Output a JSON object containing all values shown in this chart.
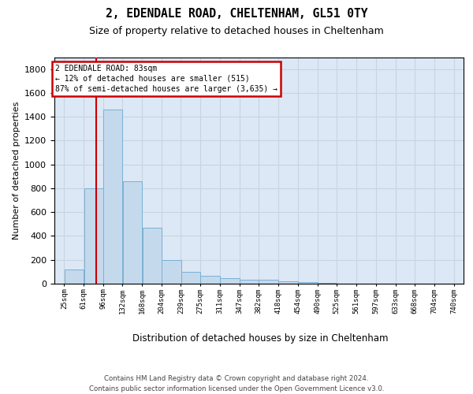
{
  "title": "2, EDENDALE ROAD, CHELTENHAM, GL51 0TY",
  "subtitle": "Size of property relative to detached houses in Cheltenham",
  "xlabel": "Distribution of detached houses by size in Cheltenham",
  "ylabel": "Number of detached properties",
  "footer_line1": "Contains HM Land Registry data © Crown copyright and database right 2024.",
  "footer_line2": "Contains public sector information licensed under the Open Government Licence v3.0.",
  "bar_color": "#c5d9ed",
  "bar_edge_color": "#7ab0d4",
  "grid_color": "#c8d4e0",
  "background_color": "#dce8f5",
  "red_line_x": 83,
  "annotation_text_line1": "2 EDENDALE ROAD: 83sqm",
  "annotation_text_line2": "← 12% of detached houses are smaller (515)",
  "annotation_text_line3": "87% of semi-detached houses are larger (3,635) →",
  "annotation_box_fc": "#ffffff",
  "annotation_box_ec": "#cc0000",
  "bins_start": [
    25,
    61,
    96,
    132,
    168,
    204,
    239,
    275,
    311,
    347,
    382,
    418,
    454,
    490,
    525,
    561,
    597,
    633,
    668,
    704
  ],
  "bin_width": 36,
  "values": [
    120,
    800,
    1460,
    860,
    470,
    200,
    100,
    65,
    45,
    35,
    30,
    20,
    10,
    5,
    3,
    2,
    1,
    1,
    1,
    1
  ],
  "ylim": [
    0,
    1900
  ],
  "yticks": [
    0,
    200,
    400,
    600,
    800,
    1000,
    1200,
    1400,
    1600,
    1800
  ],
  "xtick_labels": [
    "25sqm",
    "61sqm",
    "96sqm",
    "132sqm",
    "168sqm",
    "204sqm",
    "239sqm",
    "275sqm",
    "311sqm",
    "347sqm",
    "382sqm",
    "418sqm",
    "454sqm",
    "490sqm",
    "525sqm",
    "561sqm",
    "597sqm",
    "633sqm",
    "668sqm",
    "704sqm",
    "740sqm"
  ]
}
